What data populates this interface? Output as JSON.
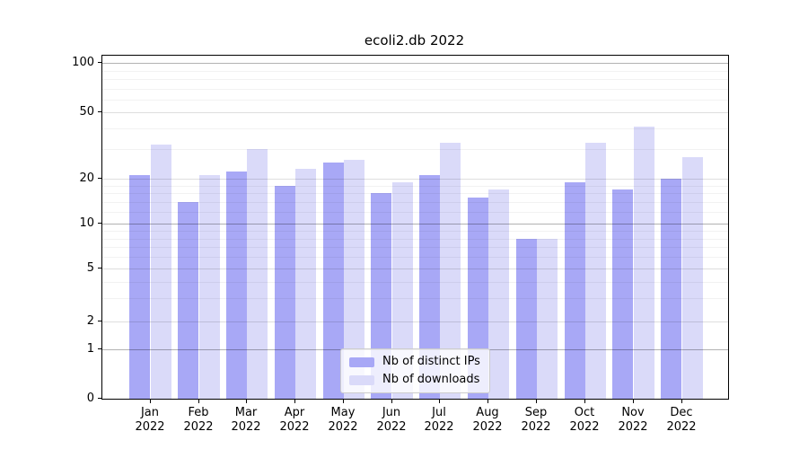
{
  "title": "ecoli2.db 2022",
  "chart_data": {
    "type": "bar",
    "categories": [
      "Jan",
      "Feb",
      "Mar",
      "Apr",
      "May",
      "Jun",
      "Jul",
      "Aug",
      "Sep",
      "Oct",
      "Nov",
      "Dec"
    ],
    "year": "2022",
    "series": [
      {
        "name": "Nb of distinct IPs",
        "color": "#a8a8f6",
        "values": [
          21,
          14,
          22,
          18,
          25,
          16,
          21,
          15,
          8,
          19,
          17,
          20
        ]
      },
      {
        "name": "Nb of downloads",
        "color": "#dadaf9",
        "values": [
          32,
          21,
          30,
          23,
          26,
          19,
          33,
          17,
          8,
          33,
          41,
          27
        ]
      }
    ],
    "title": "ecoli2.db 2022",
    "xlabel": "",
    "ylabel": "",
    "yscale": "log-like (0,1,2,5,10,20,50,100 ticks)",
    "yticks": [
      0,
      1,
      2,
      5,
      10,
      20,
      50,
      100
    ],
    "ylim": [
      0,
      112
    ],
    "grid": true,
    "legend_position": "bottom-center"
  }
}
